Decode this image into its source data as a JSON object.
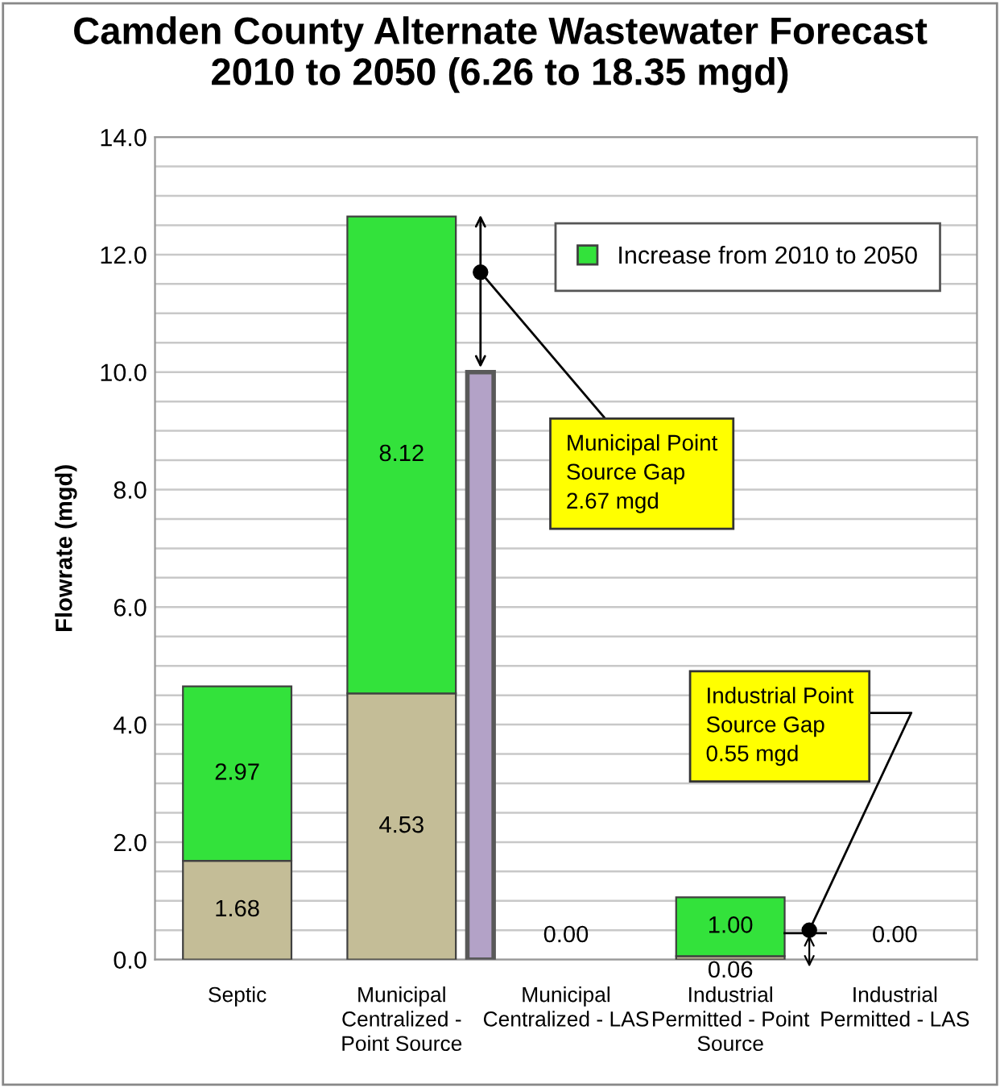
{
  "chart_data": [
    {
      "type": "bar",
      "title": "Camden County Alternate Wastewater Forecast\n2010 to 2050 (6.26 to 18.35 mgd)",
      "ylabel": "Flowrate (mgd)",
      "categories": [
        "Septic",
        "Municipal\nCentralized -\nPoint Source",
        "Municipal\nCentralized - LAS",
        "Industrial\nPermitted - Point\nSource",
        "Industrial\nPermitted - LAS"
      ],
      "stacked": true,
      "series": [
        {
          "color": "#c4bd97",
          "values": [
            1.68,
            4.53,
            0,
            0.06,
            0
          ],
          "value_labels": [
            "1.68",
            "4.53",
            "0.00",
            "0.06",
            "0.00"
          ]
        },
        {
          "name": "Increase from 2010 to 2050",
          "color": "#33e23b",
          "values": [
            2.97,
            8.12,
            0,
            1.0,
            0
          ],
          "value_labels": [
            "2.97",
            "8.12",
            null,
            "1.00",
            null
          ]
        }
      ],
      "ylim": [
        0,
        14
      ],
      "yticks": [
        {
          "value": 0,
          "label": "0.0"
        },
        {
          "value": 0.5,
          "label": null
        },
        {
          "value": 1,
          "label": null
        },
        {
          "value": 1.5,
          "label": null
        },
        {
          "value": 2,
          "label": "2.0"
        },
        {
          "value": 2.5,
          "label": null
        },
        {
          "value": 3,
          "label": null
        },
        {
          "value": 3.5,
          "label": null
        },
        {
          "value": 4,
          "label": "4.0"
        },
        {
          "value": 4.5,
          "label": null
        },
        {
          "value": 5,
          "label": null
        },
        {
          "value": 5.5,
          "label": null
        },
        {
          "value": 6,
          "label": "6.0"
        },
        {
          "value": 6.5,
          "label": null
        },
        {
          "value": 7,
          "label": null
        },
        {
          "value": 7.5,
          "label": null
        },
        {
          "value": 8,
          "label": "8.0"
        },
        {
          "value": 8.5,
          "label": null
        },
        {
          "value": 9,
          "label": null
        },
        {
          "value": 9.5,
          "label": null
        },
        {
          "value": 10,
          "label": "10.0"
        },
        {
          "value": 10.5,
          "label": null
        },
        {
          "value": 11,
          "label": null
        },
        {
          "value": 11.5,
          "label": null
        },
        {
          "value": 12,
          "label": "12.0"
        },
        {
          "value": 12.5,
          "label": null
        },
        {
          "value": 13,
          "label": null
        },
        {
          "value": 13.5,
          "label": null
        },
        {
          "value": 14,
          "label": "14.0"
        }
      ],
      "grid": "y",
      "legend": "top right",
      "annotations": [
        "Municipal Point\nSource Gap\n2.67 mgd",
        "Industrial Point\nSource Gap\n0.55 mgd"
      ]
    },
    {
      "type": "bar",
      "categories": [
        null,
        null,
        null,
        null,
        null
      ],
      "series": [
        {
          "color": "#b3a2c7",
          "values": [
            null,
            10.0,
            null,
            null,
            null
          ]
        }
      ],
      "ylim": [
        0,
        14
      ],
      "tick_labels": false
    }
  ]
}
